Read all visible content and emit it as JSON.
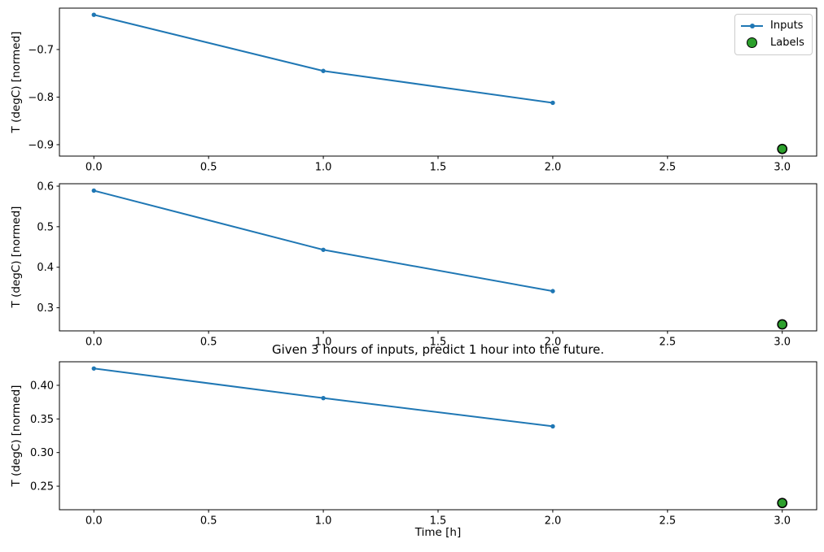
{
  "figure": {
    "title": "Given 3 hours of inputs, predict 1 hour into the future.",
    "xlabel": "Time [h]",
    "ylabel": "T (degC) [normed]",
    "colors": {
      "background": "#ffffff",
      "inputs_line": "#1f77b4",
      "labels_fill": "#2ca02c",
      "labels_edge": "#000000",
      "axis": "#000000",
      "text": "#000000",
      "legend_border": "#cccccc"
    },
    "legend": {
      "position": "upper right",
      "entries": [
        {
          "label": "Inputs",
          "marker": "line-with-dot",
          "color": "#1f77b4"
        },
        {
          "label": "Labels",
          "marker": "circle",
          "color": "#2ca02c"
        }
      ]
    }
  },
  "chart_data": [
    {
      "name": "subplot-top",
      "type": "line",
      "ylabel": "T (degC) [normed]",
      "x": [
        0,
        1,
        2
      ],
      "series": [
        {
          "name": "Inputs",
          "values": [
            -0.627,
            -0.745,
            -0.812
          ]
        }
      ],
      "labels_point": {
        "name": "Labels",
        "x": 3,
        "y": -0.909
      },
      "xlim": [
        -0.15,
        3.15
      ],
      "ylim": [
        -0.924,
        -0.613
      ],
      "xtick_values": [
        0,
        0.5,
        1,
        1.5,
        2,
        2.5,
        3
      ],
      "xtick_labels": [
        "0.0",
        "0.5",
        "1.0",
        "1.5",
        "2.0",
        "2.5",
        "3.0"
      ],
      "ytick_values": [
        -0.9,
        -0.8,
        -0.7
      ],
      "ytick_labels": [
        "−0.9",
        "−0.8",
        "−0.7"
      ],
      "grid": false
    },
    {
      "name": "subplot-middle",
      "type": "line",
      "ylabel": "T (degC) [normed]",
      "x": [
        0,
        1,
        2
      ],
      "series": [
        {
          "name": "Inputs",
          "values": [
            0.589,
            0.443,
            0.341
          ]
        }
      ],
      "labels_point": {
        "name": "Labels",
        "x": 3,
        "y": 0.259
      },
      "xlim": [
        -0.15,
        3.15
      ],
      "ylim": [
        0.243,
        0.606
      ],
      "xtick_values": [
        0,
        0.5,
        1,
        1.5,
        2,
        2.5,
        3
      ],
      "xtick_labels": [
        "0.0",
        "0.5",
        "1.0",
        "1.5",
        "2.0",
        "2.5",
        "3.0"
      ],
      "ytick_values": [
        0.3,
        0.4,
        0.5,
        0.6
      ],
      "ytick_labels": [
        "0.3",
        "0.4",
        "0.5",
        "0.6"
      ],
      "grid": false
    },
    {
      "name": "subplot-bottom",
      "type": "line",
      "ylabel": "T (degC) [normed]",
      "xlabel": "Time [h]",
      "title": "Given 3 hours of inputs, predict 1 hour into the future.",
      "x": [
        0,
        1,
        2
      ],
      "series": [
        {
          "name": "Inputs",
          "values": [
            0.425,
            0.381,
            0.339
          ]
        }
      ],
      "labels_point": {
        "name": "Labels",
        "x": 3,
        "y": 0.225
      },
      "xlim": [
        -0.15,
        3.15
      ],
      "ylim": [
        0.215,
        0.435
      ],
      "xtick_values": [
        0,
        0.5,
        1,
        1.5,
        2,
        2.5,
        3
      ],
      "xtick_labels": [
        "0.0",
        "0.5",
        "1.0",
        "1.5",
        "2.0",
        "2.5",
        "3.0"
      ],
      "ytick_values": [
        0.25,
        0.3,
        0.35,
        0.4
      ],
      "ytick_labels": [
        "0.25",
        "0.30",
        "0.35",
        "0.40"
      ],
      "grid": false
    }
  ]
}
